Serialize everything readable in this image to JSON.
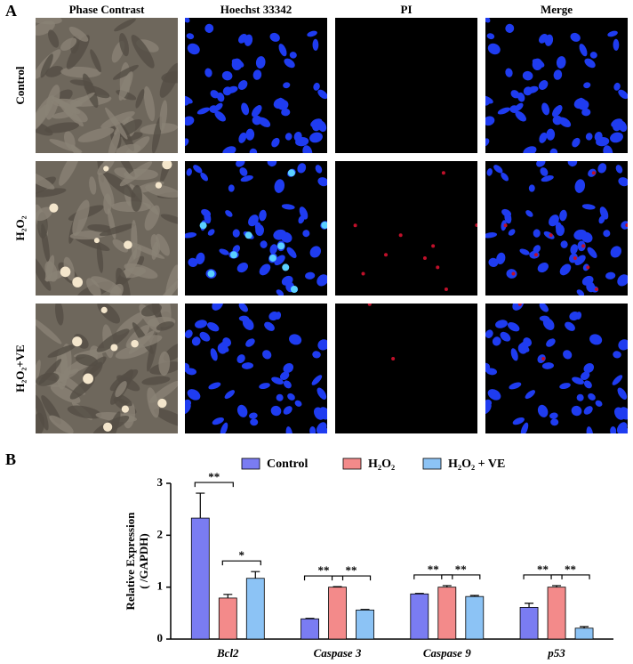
{
  "panel_a": {
    "label": "A",
    "columns": [
      "Phase Contrast",
      "Hoechst 33342",
      "PI",
      "Merge"
    ],
    "rows": [
      "Control",
      "H₂O₂",
      "H₂O₂+VE"
    ]
  },
  "chart_data": {
    "type": "bar",
    "panel_label": "B",
    "y_label": [
      "Relative Expression",
      "( /GAPDH)"
    ],
    "categories": [
      "Bcl2",
      "Caspase 3",
      "Caspase 9",
      "p53"
    ],
    "series": [
      {
        "name": "Control",
        "color": "#7a7cf2",
        "values": [
          2.33,
          0.39,
          0.87,
          0.61
        ],
        "errors": [
          0.48,
          0.01,
          0.01,
          0.08
        ]
      },
      {
        "name": "H₂O₂",
        "color": "#f38a8a",
        "values": [
          0.79,
          1.0,
          1.0,
          1.0
        ],
        "errors": [
          0.07,
          0.01,
          0.03,
          0.03
        ]
      },
      {
        "name": "H₂O₂ + VE",
        "color": "#8cc3f5",
        "values": [
          1.17,
          0.56,
          0.82,
          0.21
        ],
        "errors": [
          0.13,
          0.01,
          0.02,
          0.03
        ]
      }
    ],
    "significance": [
      [
        "**",
        "*"
      ],
      [
        "**",
        "**"
      ],
      [
        "**",
        "**"
      ],
      [
        "**",
        "**"
      ]
    ],
    "ylim": [
      0,
      3
    ],
    "yticks": [
      0,
      1,
      2,
      3
    ],
    "legend": "top"
  }
}
